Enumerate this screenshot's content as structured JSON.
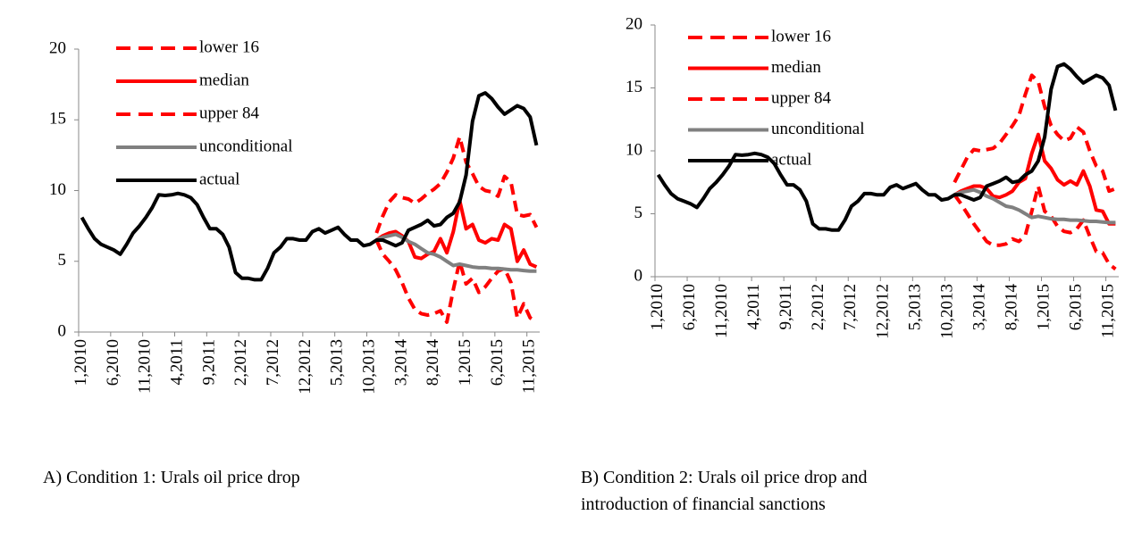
{
  "chart_data": [
    {
      "type": "line",
      "caption": "A) Condition 1: Urals oil price drop",
      "categories": [
        "1,2010",
        null,
        null,
        null,
        null,
        "6,2010",
        null,
        null,
        null,
        null,
        "11,2010",
        null,
        null,
        null,
        null,
        "4,2011",
        null,
        null,
        null,
        null,
        "9,2011",
        null,
        null,
        null,
        null,
        "2,2012",
        null,
        null,
        null,
        null,
        "7,2012",
        null,
        null,
        null,
        null,
        "12,2012",
        null,
        null,
        null,
        null,
        "5,2013",
        null,
        null,
        null,
        null,
        "10,2013",
        null,
        null,
        null,
        null,
        "3,2014",
        null,
        null,
        null,
        null,
        "8,2014",
        null,
        null,
        null,
        null,
        "1,2015",
        null,
        null,
        null,
        null,
        "6,2015",
        null,
        null,
        null,
        null,
        "11,2015",
        null
      ],
      "ylim": [
        0,
        20
      ],
      "yticks": [
        0,
        5,
        10,
        15,
        20
      ],
      "legend": "upper left",
      "series": [
        {
          "name": "lower 16",
          "color": "#ff0000",
          "dashed": true,
          "values": [
            null,
            null,
            null,
            null,
            null,
            null,
            null,
            null,
            null,
            null,
            null,
            null,
            null,
            null,
            null,
            null,
            null,
            null,
            null,
            null,
            null,
            null,
            null,
            null,
            null,
            null,
            null,
            null,
            null,
            null,
            null,
            null,
            null,
            null,
            null,
            null,
            null,
            null,
            null,
            null,
            null,
            null,
            null,
            null,
            null,
            null,
            6.5,
            5.5,
            5.0,
            4.4,
            3.5,
            2.4,
            1.6,
            1.3,
            1.2,
            1.3,
            1.5,
            0.7,
            3.0,
            5.0,
            3.4,
            3.8,
            2.8,
            3.2,
            3.8,
            4.3,
            4.5,
            3.5,
            1.0,
            2.0,
            1.0,
            0.7
          ]
        },
        {
          "name": "median",
          "color": "#ff0000",
          "dashed": false,
          "values": [
            null,
            null,
            null,
            null,
            null,
            null,
            null,
            null,
            null,
            null,
            null,
            null,
            null,
            null,
            null,
            null,
            null,
            null,
            null,
            null,
            null,
            null,
            null,
            null,
            null,
            null,
            null,
            null,
            null,
            null,
            null,
            null,
            null,
            null,
            null,
            null,
            null,
            null,
            null,
            null,
            null,
            null,
            null,
            null,
            null,
            null,
            6.5,
            6.8,
            7.0,
            7.1,
            6.8,
            6.4,
            5.3,
            5.2,
            5.5,
            5.7,
            6.6,
            5.6,
            7.1,
            9.3,
            7.3,
            7.6,
            6.5,
            6.3,
            6.6,
            6.5,
            7.6,
            7.3,
            5.0,
            5.8,
            4.8,
            4.6
          ]
        },
        {
          "name": "upper 84",
          "color": "#ff0000",
          "dashed": true,
          "values": [
            null,
            null,
            null,
            null,
            null,
            null,
            null,
            null,
            null,
            null,
            null,
            null,
            null,
            null,
            null,
            null,
            null,
            null,
            null,
            null,
            null,
            null,
            null,
            null,
            null,
            null,
            null,
            null,
            null,
            null,
            null,
            null,
            null,
            null,
            null,
            null,
            null,
            null,
            null,
            null,
            null,
            null,
            null,
            null,
            null,
            null,
            7.0,
            8.2,
            9.2,
            9.7,
            9.5,
            9.4,
            9.1,
            9.4,
            9.8,
            10.1,
            10.5,
            11.3,
            12.3,
            13.8,
            12.0,
            11.2,
            10.3,
            10.0,
            9.9,
            9.6,
            11.0,
            10.6,
            8.3,
            8.2,
            8.3,
            7.4
          ]
        },
        {
          "name": "unconditional",
          "color": "#808080",
          "dashed": false,
          "values": [
            null,
            null,
            null,
            null,
            null,
            null,
            null,
            null,
            null,
            null,
            null,
            null,
            null,
            null,
            null,
            null,
            null,
            null,
            null,
            null,
            null,
            null,
            null,
            null,
            null,
            null,
            null,
            null,
            null,
            null,
            null,
            null,
            null,
            null,
            null,
            null,
            null,
            null,
            null,
            null,
            null,
            null,
            null,
            null,
            null,
            null,
            6.5,
            6.7,
            6.8,
            6.9,
            6.7,
            6.4,
            6.2,
            5.9,
            5.6,
            5.5,
            5.3,
            5.0,
            4.7,
            4.8,
            4.7,
            4.6,
            4.55,
            4.55,
            4.5,
            4.5,
            4.45,
            4.4,
            4.4,
            4.35,
            4.3,
            4.3
          ]
        },
        {
          "name": "actual",
          "color": "#000000",
          "dashed": false,
          "values": [
            8.1,
            7.3,
            6.6,
            6.2,
            6.0,
            5.8,
            5.5,
            6.2,
            7.0,
            7.5,
            8.1,
            8.8,
            9.7,
            9.65,
            9.7,
            9.8,
            9.7,
            9.5,
            9.0,
            8.1,
            7.3,
            7.3,
            6.9,
            6.0,
            4.2,
            3.8,
            3.8,
            3.7,
            3.7,
            4.5,
            5.6,
            6.0,
            6.6,
            6.6,
            6.5,
            6.5,
            7.1,
            7.3,
            7.0,
            7.2,
            7.4,
            6.9,
            6.5,
            6.5,
            6.1,
            6.2,
            6.5,
            6.5,
            6.3,
            6.1,
            6.3,
            7.2,
            7.4,
            7.6,
            7.9,
            7.5,
            7.6,
            8.1,
            8.4,
            9.2,
            11.1,
            14.9,
            16.7,
            16.9,
            16.5,
            15.9,
            15.4,
            15.7,
            16.0,
            15.8,
            15.2,
            13.2
          ]
        }
      ]
    },
    {
      "type": "line",
      "caption": "B) Condition 2: Urals oil price drop and introduction of financial sanctions",
      "categories": [
        "1,2010",
        null,
        null,
        null,
        null,
        "6,2010",
        null,
        null,
        null,
        null,
        "11,2010",
        null,
        null,
        null,
        null,
        "4,2011",
        null,
        null,
        null,
        null,
        "9,2011",
        null,
        null,
        null,
        null,
        "2,2012",
        null,
        null,
        null,
        null,
        "7,2012",
        null,
        null,
        null,
        null,
        "12,2012",
        null,
        null,
        null,
        null,
        "5,2013",
        null,
        null,
        null,
        null,
        "10,2013",
        null,
        null,
        null,
        null,
        "3,2014",
        null,
        null,
        null,
        null,
        "8,2014",
        null,
        null,
        null,
        null,
        "1,2015",
        null,
        null,
        null,
        null,
        "6,2015",
        null,
        null,
        null,
        null,
        "11,2015",
        null
      ],
      "ylim": [
        0,
        20
      ],
      "yticks": [
        0,
        5,
        10,
        15,
        20
      ],
      "legend": "upper left",
      "series": [
        {
          "name": "lower 16",
          "color": "#ff0000",
          "dashed": true,
          "values": [
            null,
            null,
            null,
            null,
            null,
            null,
            null,
            null,
            null,
            null,
            null,
            null,
            null,
            null,
            null,
            null,
            null,
            null,
            null,
            null,
            null,
            null,
            null,
            null,
            null,
            null,
            null,
            null,
            null,
            null,
            null,
            null,
            null,
            null,
            null,
            null,
            null,
            null,
            null,
            null,
            null,
            null,
            null,
            null,
            null,
            null,
            6.5,
            5.8,
            5.0,
            4.2,
            3.5,
            2.8,
            2.5,
            2.5,
            2.6,
            3.0,
            2.8,
            3.3,
            5.2,
            7.2,
            5.2,
            4.8,
            4.0,
            3.6,
            3.5,
            3.8,
            4.5,
            3.2,
            2.0,
            1.9,
            1.0,
            0.6
          ]
        },
        {
          "name": "median",
          "color": "#ff0000",
          "dashed": false,
          "values": [
            null,
            null,
            null,
            null,
            null,
            null,
            null,
            null,
            null,
            null,
            null,
            null,
            null,
            null,
            null,
            null,
            null,
            null,
            null,
            null,
            null,
            null,
            null,
            null,
            null,
            null,
            null,
            null,
            null,
            null,
            null,
            null,
            null,
            null,
            null,
            null,
            null,
            null,
            null,
            null,
            null,
            null,
            null,
            null,
            null,
            null,
            6.5,
            6.8,
            7.0,
            7.2,
            7.2,
            7.0,
            6.4,
            6.3,
            6.5,
            6.8,
            7.5,
            7.8,
            9.8,
            11.3,
            9.2,
            8.6,
            7.7,
            7.3,
            7.6,
            7.3,
            8.4,
            7.2,
            5.3,
            5.2,
            4.2,
            4.2
          ]
        },
        {
          "name": "upper 84",
          "color": "#ff0000",
          "dashed": true,
          "values": [
            null,
            null,
            null,
            null,
            null,
            null,
            null,
            null,
            null,
            null,
            null,
            null,
            null,
            null,
            null,
            null,
            null,
            null,
            null,
            null,
            null,
            null,
            null,
            null,
            null,
            null,
            null,
            null,
            null,
            null,
            null,
            null,
            null,
            null,
            null,
            null,
            null,
            null,
            null,
            null,
            null,
            null,
            null,
            null,
            null,
            null,
            7.5,
            8.5,
            9.5,
            10.1,
            10.0,
            10.1,
            10.2,
            10.6,
            11.3,
            12.0,
            12.8,
            14.5,
            16.0,
            15.5,
            13.5,
            12.0,
            11.3,
            10.8,
            11.0,
            11.9,
            11.5,
            10.0,
            8.8,
            8.4,
            6.8,
            7.0
          ]
        },
        {
          "name": "unconditional",
          "color": "#808080",
          "dashed": false,
          "values": [
            null,
            null,
            null,
            null,
            null,
            null,
            null,
            null,
            null,
            null,
            null,
            null,
            null,
            null,
            null,
            null,
            null,
            null,
            null,
            null,
            null,
            null,
            null,
            null,
            null,
            null,
            null,
            null,
            null,
            null,
            null,
            null,
            null,
            null,
            null,
            null,
            null,
            null,
            null,
            null,
            null,
            null,
            null,
            null,
            null,
            null,
            6.5,
            6.7,
            6.8,
            6.9,
            6.7,
            6.4,
            6.2,
            5.9,
            5.6,
            5.5,
            5.3,
            5.0,
            4.7,
            4.8,
            4.7,
            4.6,
            4.55,
            4.55,
            4.5,
            4.5,
            4.45,
            4.4,
            4.4,
            4.35,
            4.3,
            4.3
          ]
        },
        {
          "name": "actual",
          "color": "#000000",
          "dashed": false,
          "values": [
            8.1,
            7.3,
            6.6,
            6.2,
            6.0,
            5.8,
            5.5,
            6.2,
            7.0,
            7.5,
            8.1,
            8.8,
            9.7,
            9.65,
            9.7,
            9.8,
            9.7,
            9.5,
            9.0,
            8.1,
            7.3,
            7.3,
            6.9,
            6.0,
            4.2,
            3.8,
            3.8,
            3.7,
            3.7,
            4.5,
            5.6,
            6.0,
            6.6,
            6.6,
            6.5,
            6.5,
            7.1,
            7.3,
            7.0,
            7.2,
            7.4,
            6.9,
            6.5,
            6.5,
            6.1,
            6.2,
            6.5,
            6.5,
            6.3,
            6.1,
            6.3,
            7.2,
            7.4,
            7.6,
            7.9,
            7.5,
            7.6,
            8.1,
            8.4,
            9.2,
            11.1,
            14.9,
            16.7,
            16.9,
            16.5,
            15.9,
            15.4,
            15.7,
            16.0,
            15.8,
            15.2,
            13.2
          ]
        }
      ]
    }
  ]
}
